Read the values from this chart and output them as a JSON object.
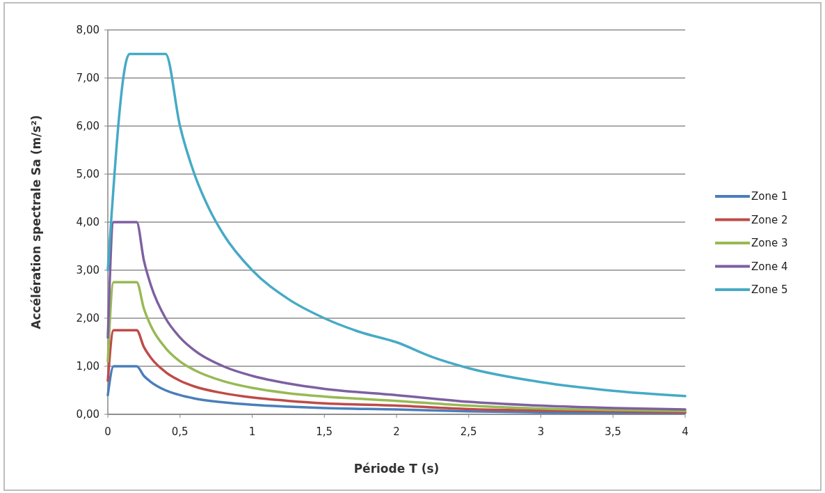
{
  "chart_data": {
    "type": "line",
    "xlabel": "Période T (s)",
    "ylabel": "Accélération spectrale Sa (m/s²)",
    "xlim": [
      0,
      4
    ],
    "xticks": [
      0,
      {
        "value": 0.5,
        "label": "0,5"
      },
      1,
      {
        "value": 1.5,
        "label": "1,5"
      },
      2,
      {
        "value": 2.5,
        "label": "2,5"
      },
      3,
      {
        "value": 3.5,
        "label": "3,5"
      },
      4
    ],
    "ylim": [
      0,
      8
    ],
    "yticks": [
      {
        "value": 0,
        "label": "0,00"
      },
      {
        "value": 1,
        "label": "1,00"
      },
      {
        "value": 2,
        "label": "2,00"
      },
      {
        "value": 3,
        "label": "3,00"
      },
      {
        "value": 4,
        "label": "4,00"
      },
      {
        "value": 5,
        "label": "5,00"
      },
      {
        "value": 6,
        "label": "6,00"
      },
      {
        "value": 7,
        "label": "7,00"
      },
      {
        "value": 8,
        "label": "8,00"
      }
    ],
    "grid": "y",
    "legend": "right",
    "marker": "none",
    "line_style": "solid",
    "series": [
      {
        "name": "Zone 1",
        "color": "#4a7ebb",
        "x": [
          0,
          0.04,
          0.2,
          0.25,
          0.3,
          0.4,
          0.5,
          0.6,
          0.8,
          1,
          1.25,
          1.5,
          2,
          2.5,
          3,
          3.5,
          4
        ],
        "values": [
          0.4,
          1,
          1,
          0.8,
          0.67,
          0.5,
          0.4,
          0.33,
          0.25,
          0.2,
          0.16,
          0.13,
          0.1,
          0.06,
          0.04,
          0.03,
          0.03
        ]
      },
      {
        "name": "Zone 2",
        "color": "#be4b48",
        "x": [
          0,
          0.04,
          0.2,
          0.25,
          0.3,
          0.4,
          0.5,
          0.6,
          0.8,
          1,
          1.25,
          1.5,
          2,
          2.5,
          3,
          3.5,
          4
        ],
        "values": [
          0.7,
          1.75,
          1.75,
          1.4,
          1.17,
          0.88,
          0.7,
          0.58,
          0.44,
          0.35,
          0.28,
          0.23,
          0.18,
          0.11,
          0.08,
          0.06,
          0.04
        ]
      },
      {
        "name": "Zone 3",
        "color": "#98b954",
        "x": [
          0,
          0.04,
          0.2,
          0.25,
          0.3,
          0.4,
          0.5,
          0.6,
          0.8,
          1,
          1.25,
          1.5,
          2,
          2.5,
          3,
          3.5,
          4
        ],
        "values": [
          1.1,
          2.75,
          2.75,
          2.2,
          1.83,
          1.38,
          1.1,
          0.92,
          0.69,
          0.55,
          0.44,
          0.37,
          0.28,
          0.18,
          0.12,
          0.09,
          0.07
        ]
      },
      {
        "name": "Zone 4",
        "color": "#7d60a0",
        "x": [
          0,
          0.04,
          0.2,
          0.25,
          0.3,
          0.4,
          0.5,
          0.6,
          0.8,
          1,
          1.25,
          1.5,
          2,
          2.5,
          3,
          3.5,
          4
        ],
        "values": [
          1.6,
          4,
          4,
          3.2,
          2.67,
          2,
          1.6,
          1.33,
          1,
          0.8,
          0.64,
          0.53,
          0.4,
          0.26,
          0.18,
          0.13,
          0.1
        ]
      },
      {
        "name": "Zone 5",
        "color": "#46aac5",
        "x": [
          0,
          0.15,
          0.4,
          0.5,
          0.6,
          0.7,
          0.8,
          1,
          1.25,
          1.5,
          1.75,
          2,
          2.25,
          2.5,
          3,
          3.5,
          4
        ],
        "values": [
          3,
          7.5,
          7.5,
          6,
          5,
          4.29,
          3.75,
          3,
          2.4,
          2,
          1.71,
          1.5,
          1.19,
          0.96,
          0.67,
          0.49,
          0.38
        ]
      }
    ]
  }
}
